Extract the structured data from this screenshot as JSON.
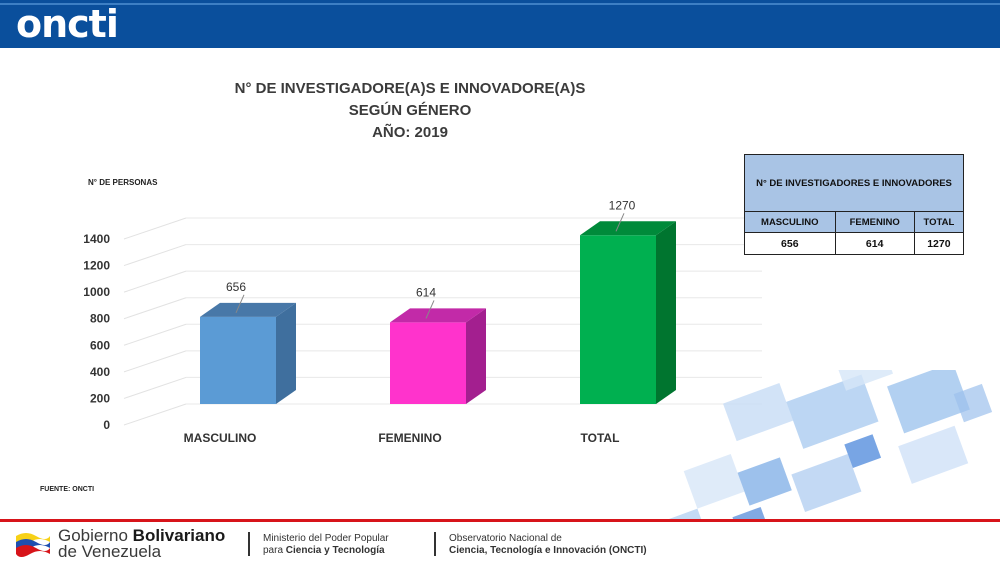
{
  "header": {
    "logo_text": "oncti"
  },
  "colors": {
    "header_bg": "#0a4f9c",
    "masculino": "#5b9bd5",
    "femenino": "#ff33cc",
    "total": "#00b050",
    "table_header": "#a9c4e5",
    "footer_rule": "#d7141a"
  },
  "chart_data": {
    "type": "bar",
    "title_lines": [
      "N° DE INVESTIGADORE(A)S E INNOVADORE(A)S",
      "SEGÚN GÉNERO",
      "AÑO: 2019"
    ],
    "ylabel": "N° DE PERSONAS",
    "categories": [
      "MASCULINO",
      "FEMENINO",
      "TOTAL"
    ],
    "values": [
      656,
      614,
      1270
    ],
    "data_labels": [
      "656",
      "614",
      "1270"
    ],
    "yticks": [
      0,
      200,
      400,
      600,
      800,
      1000,
      1200,
      1400
    ],
    "ylim": [
      0,
      1400
    ],
    "grid": true,
    "style": "3d-bar",
    "legend": "none"
  },
  "table": {
    "caption": "N° DE INVESTIGADORES E INNOVADORES",
    "headers": [
      "MASCULINO",
      "FEMENINO",
      "TOTAL"
    ],
    "values": [
      "656",
      "614",
      "1270"
    ]
  },
  "source": "FUENTE: ONCTI",
  "footer": {
    "gov_line1_a": "Gobierno ",
    "gov_line1_b": "Bolivariano",
    "gov_line2": "de Venezuela",
    "ministry_line1": "Ministerio del Poder Popular",
    "ministry_line2_a": "para ",
    "ministry_line2_b": "Ciencia y Tecnología",
    "obs_line1": "Observatorio Nacional de",
    "obs_line2": "Ciencia, Tecnología e Innovación (ONCTI)"
  }
}
